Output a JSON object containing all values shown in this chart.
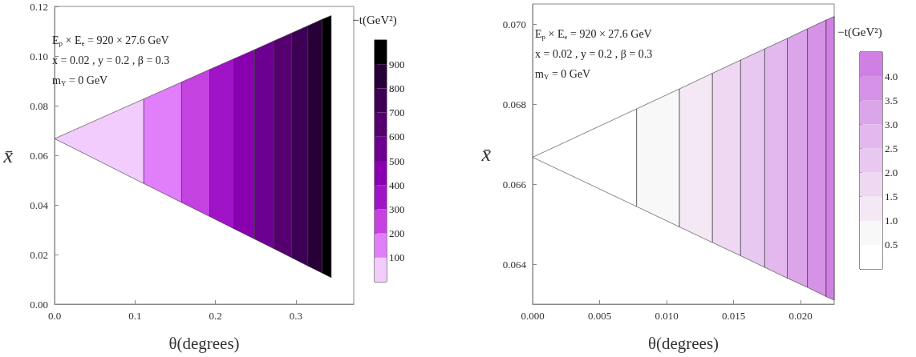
{
  "chart_data": [
    {
      "type": "area",
      "xlabel": "θ(degrees)",
      "ylabel": "x̄",
      "clabel": "−t(GeV²)",
      "annotations": [
        "E$_{p}$ × E$_{e}$ = 920 × 27.6 GeV",
        "x = 0.02 , y = 0.2 , β = 0.3",
        "m$_{Y}$ = 0 GeV"
      ],
      "xlim": [
        0,
        0.372
      ],
      "xticks": [
        {
          "value": 0,
          "label": "0.0"
        },
        0.1,
        0.2,
        0.3
      ],
      "ylim": [
        0,
        0.12
      ],
      "yticks": [
        {
          "value": 0,
          "label": "0.00"
        },
        0.02,
        0.04,
        0.06,
        0.08,
        {
          "value": 0.1,
          "label": "0.10"
        },
        0.12
      ],
      "clim": [
        0,
        1000
      ],
      "cticks": [
        100,
        200,
        300,
        400,
        500,
        600,
        700,
        800,
        900
      ],
      "series": [
        {
          "color": "#f2ccfc",
          "x": [
            0,
            0.111
          ],
          "values": [
            null,
            null
          ],
          "lower": [
            0.0667,
            0.0486
          ],
          "upper": [
            0.0667,
            0.0827
          ]
        },
        {
          "color": "#e17ef9",
          "x": [
            0.111,
            0.158
          ],
          "values": [
            null,
            null
          ],
          "lower": [
            0.0486,
            0.041
          ],
          "upper": [
            0.0827,
            0.0895
          ]
        },
        {
          "color": "#c443e0",
          "x": [
            0.158,
            0.193
          ],
          "values": [
            null,
            null
          ],
          "lower": [
            0.041,
            0.0353
          ],
          "upper": [
            0.0895,
            0.0946
          ]
        },
        {
          "color": "#a014c8",
          "x": [
            0.193,
            0.223
          ],
          "values": [
            null,
            null
          ],
          "lower": [
            0.0353,
            0.0304
          ],
          "upper": [
            0.0946,
            0.0989
          ]
        },
        {
          "color": "#8800b0",
          "x": [
            0.223,
            0.249
          ],
          "values": [
            null,
            null
          ],
          "lower": [
            0.0304,
            0.0262
          ],
          "upper": [
            0.0989,
            0.1026
          ]
        },
        {
          "color": "#6c0090",
          "x": [
            0.249,
            0.273
          ],
          "values": [
            null,
            null
          ],
          "lower": [
            0.0262,
            0.0223
          ],
          "upper": [
            0.1026,
            0.1061
          ]
        },
        {
          "color": "#56006f",
          "x": [
            0.273,
            0.295
          ],
          "values": [
            null,
            null
          ],
          "lower": [
            0.0223,
            0.0187
          ],
          "upper": [
            0.1061,
            0.1093
          ]
        },
        {
          "color": "#3e0055",
          "x": [
            0.295,
            0.315
          ],
          "values": [
            null,
            null
          ],
          "lower": [
            0.0187,
            0.0154
          ],
          "upper": [
            0.1093,
            0.1122
          ]
        },
        {
          "color": "#280038",
          "x": [
            0.315,
            0.333
          ],
          "values": [
            null,
            null
          ],
          "lower": [
            0.0154,
            0.0125
          ],
          "upper": [
            0.1122,
            0.1148
          ]
        },
        {
          "color": "#000000",
          "x": [
            0.333,
            0.344
          ],
          "values": [
            null,
            null
          ],
          "lower": [
            0.0125,
            0.0107
          ],
          "upper": [
            0.1148,
            0.1163
          ]
        }
      ]
    },
    {
      "type": "area",
      "xlabel": "θ(degrees)",
      "ylabel": "x̄",
      "clabel": "−t(GeV²)",
      "annotations": [
        "E$_{p}$ × E$_{e}$ = 920 × 27.6 GeV",
        "x = 0.02 , y = 0.2 , β = 0.3",
        "m$_{Y}$ = 0 GeV"
      ],
      "xlim": [
        0,
        0.0225
      ],
      "xticks": [
        {
          "value": 0,
          "label": "0.000"
        },
        {
          "value": 0.005,
          "label": "0.005"
        },
        {
          "value": 0.01,
          "label": "0.010"
        },
        {
          "value": 0.015,
          "label": "0.015"
        },
        {
          "value": 0.02,
          "label": "0.020"
        }
      ],
      "ylim": [
        0.063,
        0.0705
      ],
      "yticks": [
        0.064,
        0.066,
        0.068,
        {
          "value": 0.07,
          "label": "0.070"
        }
      ],
      "clim": [
        0,
        4.5
      ],
      "cticks": [
        0.5,
        {
          "value": 1,
          "label": "1.0"
        },
        1.5,
        {
          "value": 2,
          "label": "2.0"
        },
        2.5,
        {
          "value": 3,
          "label": "3.0"
        },
        3.5,
        {
          "value": 4,
          "label": "4.0"
        }
      ],
      "series": [
        {
          "color": "#ffffff",
          "x": [
            0,
            0.00776
          ],
          "values": [
            null,
            null
          ],
          "lower": [
            0.06667,
            0.06544
          ],
          "upper": [
            0.06667,
            0.06788
          ]
        },
        {
          "color": "#f8f8f8",
          "x": [
            0.00776,
            0.01096
          ],
          "values": [
            null,
            null
          ],
          "lower": [
            0.06544,
            0.06493
          ],
          "upper": [
            0.06788,
            0.06838
          ]
        },
        {
          "color": "#f5e8f5",
          "x": [
            0.01096,
            0.01342
          ],
          "values": [
            null,
            null
          ],
          "lower": [
            0.06493,
            0.06454
          ],
          "upper": [
            0.06838,
            0.06877
          ]
        },
        {
          "color": "#eed8f2",
          "x": [
            0.01342,
            0.01552
          ],
          "values": [
            null,
            null
          ],
          "lower": [
            0.06454,
            0.06421
          ],
          "upper": [
            0.06877,
            0.0691
          ]
        },
        {
          "color": "#e8c8f0",
          "x": [
            0.01552,
            0.01732
          ],
          "values": [
            null,
            null
          ],
          "lower": [
            0.06421,
            0.06392
          ],
          "upper": [
            0.0691,
            0.06938
          ]
        },
        {
          "color": "#e2b8ee",
          "x": [
            0.01732,
            0.019
          ],
          "values": [
            null,
            null
          ],
          "lower": [
            0.06392,
            0.06365
          ],
          "upper": [
            0.06938,
            0.06964
          ]
        },
        {
          "color": "#dba5ea",
          "x": [
            0.019,
            0.0205
          ],
          "values": [
            null,
            null
          ],
          "lower": [
            0.06365,
            0.06342
          ],
          "upper": [
            0.06964,
            0.06988
          ]
        },
        {
          "color": "#d592e6",
          "x": [
            0.0205,
            0.0219
          ],
          "values": [
            null,
            null
          ],
          "lower": [
            0.06342,
            0.06319
          ],
          "upper": [
            0.06988,
            0.0701
          ]
        },
        {
          "color": "#d080e2",
          "x": [
            0.0219,
            0.0225
          ],
          "values": [
            null,
            null
          ],
          "lower": [
            0.06319,
            0.0631
          ],
          "upper": [
            0.0701,
            0.07019
          ]
        }
      ]
    }
  ]
}
